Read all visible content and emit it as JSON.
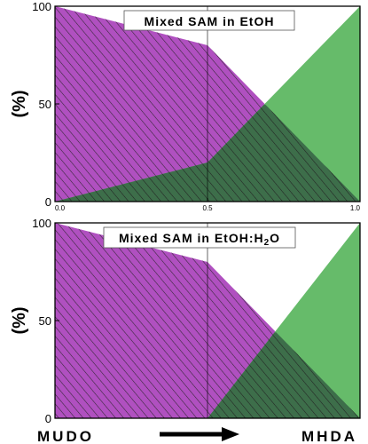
{
  "colors": {
    "mudo_fill": "#b050c0",
    "mhda_fill": "#66bb6a",
    "overlap_fill": "#3d6e4a",
    "hatch": "#222222",
    "axis": "#000000"
  },
  "bottom_axis": {
    "left_label": "MUDO",
    "right_label": "MHDA",
    "arrow": "arrow-right-icon"
  },
  "chart_data": [
    {
      "type": "area",
      "title": "Mixed SAM in EtOH",
      "ylabel": "(%)",
      "xlabel": "",
      "xlim": [
        0,
        1
      ],
      "ylim": [
        0,
        100
      ],
      "x_ticks": [
        "0.0",
        "0.5",
        "1.0"
      ],
      "y_ticks": [
        "0",
        "50",
        "100"
      ],
      "grid": false,
      "series": [
        {
          "x": [
            0,
            0.5,
            1.0
          ],
          "y": [
            100,
            80,
            0
          ],
          "color": "#b050c0",
          "hatched": true
        },
        {
          "x": [
            0,
            0.5,
            1.0
          ],
          "y": [
            0,
            20,
            100
          ],
          "color": "#66bb6a",
          "hatched": false
        }
      ]
    },
    {
      "type": "area",
      "title": "Mixed SAM in EtOH:H",
      "title_sub": "2",
      "title_tail": "O",
      "ylabel": "(%)",
      "xlabel": "",
      "xlim": [
        0,
        1
      ],
      "ylim": [
        0,
        100
      ],
      "y_ticks": [
        "0",
        "50",
        "100"
      ],
      "grid": false,
      "series": [
        {
          "x": [
            0,
            0.5,
            1.0
          ],
          "y": [
            100,
            80,
            0
          ],
          "color": "#b050c0",
          "hatched": true
        },
        {
          "x": [
            0,
            0.5,
            1.0
          ],
          "y": [
            0,
            0,
            100
          ],
          "color": "#66bb6a",
          "hatched": false
        }
      ]
    }
  ]
}
